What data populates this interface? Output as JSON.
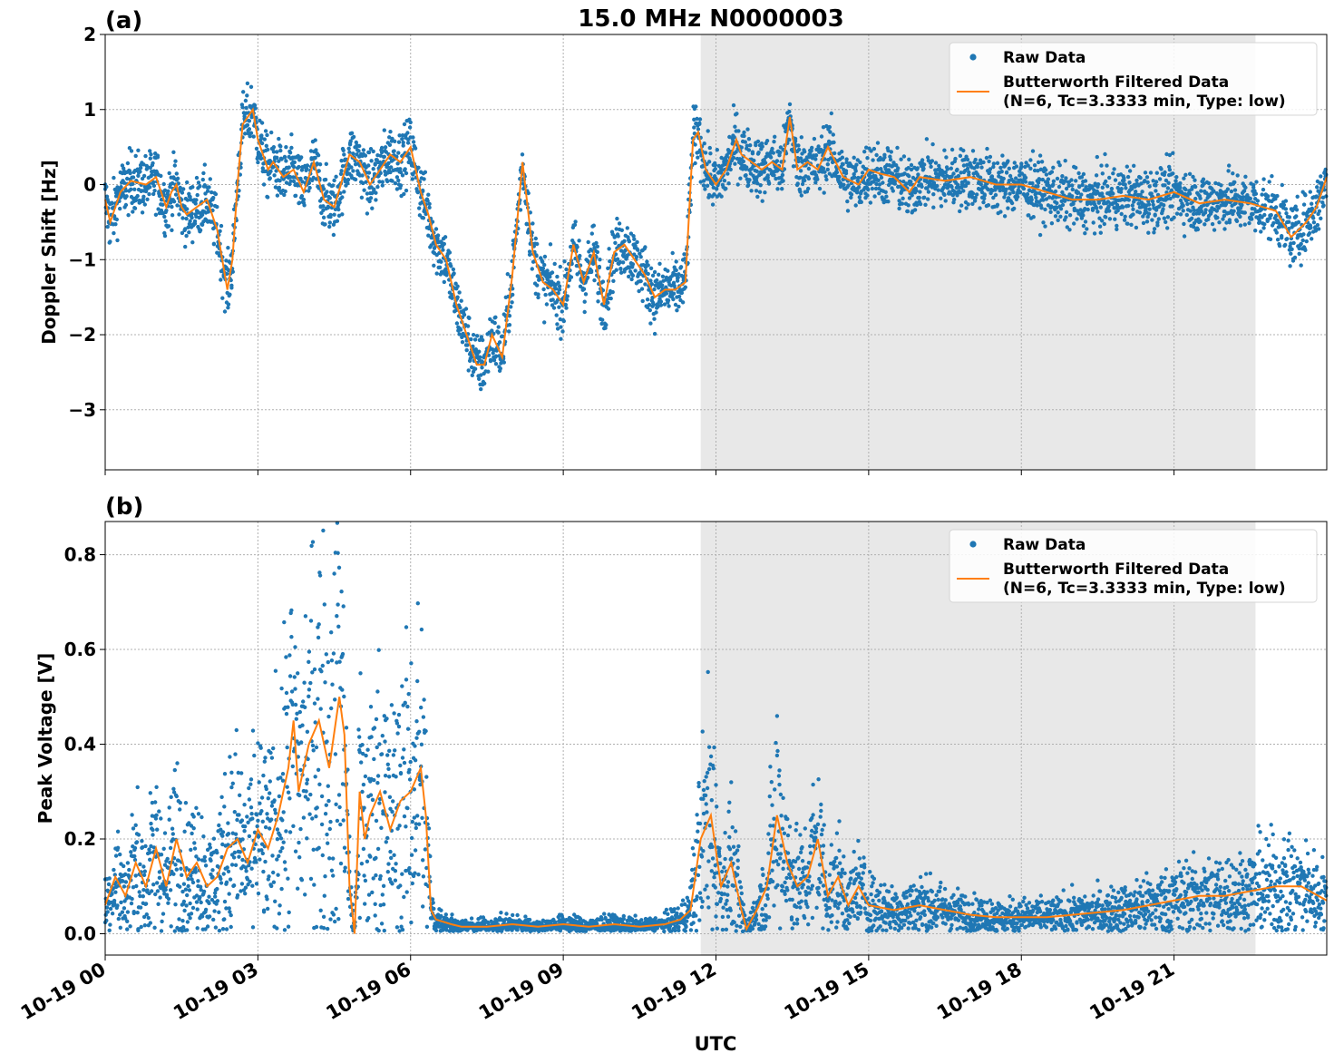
{
  "figure": {
    "title": "15.0 MHz N0000003",
    "xlabel": "UTC",
    "x_tick_labels": [
      "10-19 00",
      "10-19 03",
      "10-19 06",
      "10-19 09",
      "10-19 12",
      "10-19 15",
      "10-19 18",
      "10-19 21"
    ]
  },
  "colors": {
    "raw": "#1f77b4",
    "filtered": "#ff7f0e",
    "shade": "#e8e8e8",
    "grid": "#b0b0b0"
  },
  "chart_data": [
    {
      "type": "scatter",
      "panel_label": "(a)",
      "ylabel": "Doppler Shift [Hz]",
      "x_unit": "hours UTC on 10-19",
      "xlim": [
        0,
        24
      ],
      "ylim": [
        -3.8,
        2.0
      ],
      "y_ticks": [
        2,
        1,
        0,
        -1,
        -2,
        -3
      ],
      "y_tick_labels": [
        "2",
        "1",
        "0",
        "−1",
        "−2",
        "−3"
      ],
      "shaded_interval_hours": [
        11.7,
        22.6
      ],
      "grid": true,
      "legend": {
        "placement": "top-right",
        "raw": "Raw Data",
        "filtered_line1": "Butterworth Filtered Data",
        "filtered_line2": "(N=6, Tc=3.3333 min, Type: low)"
      },
      "series": [
        {
          "name": "Butterworth Filtered Data",
          "style": "line",
          "x": [
            0,
            0.1,
            0.3,
            0.5,
            0.8,
            1.0,
            1.2,
            1.3,
            1.4,
            1.5,
            1.6,
            1.8,
            2.0,
            2.2,
            2.3,
            2.4,
            2.5,
            2.6,
            2.7,
            2.9,
            3.0,
            3.2,
            3.3,
            3.5,
            3.7,
            3.9,
            4.1,
            4.3,
            4.5,
            4.8,
            5.0,
            5.2,
            5.4,
            5.6,
            5.8,
            6.0,
            6.2,
            6.35,
            6.5,
            6.7,
            6.9,
            7.1,
            7.3,
            7.45,
            7.6,
            7.8,
            8.0,
            8.2,
            8.4,
            8.6,
            8.8,
            9.0,
            9.2,
            9.4,
            9.6,
            9.8,
            10.0,
            10.2,
            10.4,
            10.6,
            10.8,
            11.0,
            11.2,
            11.4,
            11.55,
            11.65,
            11.8,
            12.0,
            12.2,
            12.4,
            12.5,
            12.7,
            12.9,
            13.1,
            13.3,
            13.45,
            13.6,
            13.8,
            14.0,
            14.2,
            14.5,
            14.8,
            15.0,
            15.2,
            15.5,
            15.8,
            16.0,
            16.5,
            17.0,
            17.5,
            18.0,
            18.5,
            19.0,
            19.5,
            20.0,
            20.5,
            21.0,
            21.5,
            22.0,
            22.5,
            23.0,
            23.3,
            23.6,
            23.8,
            24.0
          ],
          "y": [
            -0.2,
            -0.5,
            -0.1,
            0.05,
            0.0,
            0.1,
            -0.3,
            -0.1,
            0.0,
            -0.3,
            -0.4,
            -0.3,
            -0.2,
            -0.6,
            -1.0,
            -1.4,
            -1.0,
            0.0,
            0.8,
            1.0,
            0.6,
            0.2,
            0.3,
            0.1,
            0.2,
            -0.1,
            0.3,
            -0.2,
            -0.3,
            0.4,
            0.3,
            0.0,
            0.2,
            0.4,
            0.3,
            0.5,
            -0.1,
            -0.4,
            -0.8,
            -1.0,
            -1.6,
            -2.0,
            -2.4,
            -2.4,
            -2.0,
            -2.3,
            -1.2,
            0.3,
            -0.9,
            -1.3,
            -1.4,
            -1.6,
            -0.8,
            -1.3,
            -0.9,
            -1.6,
            -0.9,
            -0.8,
            -1.0,
            -1.2,
            -1.5,
            -1.4,
            -1.4,
            -1.3,
            0.6,
            0.7,
            0.2,
            0.0,
            0.2,
            0.6,
            0.4,
            0.3,
            0.2,
            0.3,
            0.2,
            0.9,
            0.2,
            0.3,
            0.2,
            0.5,
            0.1,
            0.0,
            0.2,
            0.15,
            0.1,
            -0.1,
            0.1,
            0.05,
            0.1,
            0.0,
            0.0,
            -0.1,
            -0.2,
            -0.2,
            -0.15,
            -0.2,
            -0.1,
            -0.25,
            -0.2,
            -0.25,
            -0.35,
            -0.7,
            -0.5,
            -0.3,
            0.1
          ]
        },
        {
          "name": "Raw Data",
          "style": "points",
          "scatter_sd": 0.28,
          "sample_step_hours": 0.012
        }
      ]
    },
    {
      "type": "scatter",
      "panel_label": "(b)",
      "ylabel": "Peak Voltage [V]",
      "x_unit": "hours UTC on 10-19",
      "xlim": [
        0,
        24
      ],
      "ylim": [
        -0.045,
        0.87
      ],
      "y_ticks": [
        0.0,
        0.2,
        0.4,
        0.6,
        0.8
      ],
      "y_tick_labels": [
        "0.0",
        "0.2",
        "0.4",
        "0.6",
        "0.8"
      ],
      "shaded_interval_hours": [
        11.7,
        22.6
      ],
      "grid": true,
      "legend": {
        "placement": "top-right",
        "raw": "Raw Data",
        "filtered_line1": "Butterworth Filtered Data",
        "filtered_line2": "(N=6, Tc=3.3333 min, Type: low)"
      },
      "series": [
        {
          "name": "Butterworth Filtered Data",
          "style": "line",
          "x": [
            0,
            0.2,
            0.4,
            0.6,
            0.8,
            1.0,
            1.2,
            1.4,
            1.6,
            1.8,
            2.0,
            2.2,
            2.4,
            2.6,
            2.8,
            3.0,
            3.2,
            3.4,
            3.6,
            3.7,
            3.8,
            4.0,
            4.2,
            4.4,
            4.6,
            4.7,
            4.8,
            4.9,
            5.0,
            5.1,
            5.2,
            5.4,
            5.6,
            5.8,
            6.0,
            6.2,
            6.3,
            6.4,
            6.5,
            6.8,
            7.0,
            7.5,
            8.0,
            8.5,
            9.0,
            9.5,
            10.0,
            10.5,
            11.0,
            11.3,
            11.5,
            11.7,
            11.9,
            12.1,
            12.3,
            12.5,
            12.6,
            12.8,
            13.0,
            13.2,
            13.4,
            13.6,
            13.8,
            14.0,
            14.2,
            14.4,
            14.6,
            14.8,
            15.0,
            15.5,
            16.0,
            16.5,
            17.0,
            17.5,
            18.0,
            18.5,
            19.0,
            19.5,
            20.0,
            20.5,
            21.0,
            21.5,
            22.0,
            22.5,
            23.0,
            23.5,
            24.0
          ],
          "y": [
            0.06,
            0.12,
            0.08,
            0.15,
            0.1,
            0.18,
            0.1,
            0.2,
            0.12,
            0.15,
            0.1,
            0.12,
            0.18,
            0.2,
            0.15,
            0.22,
            0.18,
            0.25,
            0.35,
            0.45,
            0.3,
            0.4,
            0.45,
            0.35,
            0.5,
            0.42,
            0.1,
            0.0,
            0.3,
            0.2,
            0.25,
            0.3,
            0.22,
            0.28,
            0.3,
            0.35,
            0.25,
            0.05,
            0.03,
            0.02,
            0.015,
            0.015,
            0.02,
            0.015,
            0.02,
            0.015,
            0.02,
            0.015,
            0.02,
            0.03,
            0.05,
            0.2,
            0.25,
            0.1,
            0.15,
            0.05,
            0.01,
            0.05,
            0.1,
            0.25,
            0.15,
            0.1,
            0.12,
            0.2,
            0.08,
            0.12,
            0.06,
            0.1,
            0.06,
            0.05,
            0.06,
            0.05,
            0.04,
            0.035,
            0.035,
            0.035,
            0.04,
            0.045,
            0.05,
            0.06,
            0.07,
            0.08,
            0.08,
            0.09,
            0.1,
            0.1,
            0.07
          ]
        },
        {
          "name": "Raw Data",
          "style": "points",
          "scatter_relative": 0.75,
          "sample_step_hours": 0.012
        }
      ]
    }
  ]
}
